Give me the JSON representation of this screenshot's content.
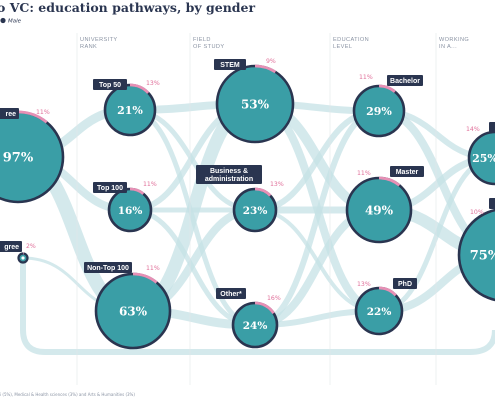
{
  "title": "o VC: education pathways, by gender",
  "legend": {
    "male": "Male"
  },
  "colors": {
    "male": "#3a9ea6",
    "female": "#e690b5",
    "navy": "#2a3550",
    "flow": "#c6e2e6"
  },
  "column_headers": [
    [
      "UNIVERSITY",
      "RANK"
    ],
    [
      "FIELD",
      "OF STUDY"
    ],
    [
      "EDUCATION",
      "LEVEL"
    ],
    [
      "WORKING",
      "IN A..."
    ]
  ],
  "footnote": "i (5%), Medical & Health sciences (3%) and Arts & Humanities (3%)",
  "chart_data": {
    "type": "bubble-flow",
    "title": "o VC: education pathways, by gender",
    "nodes": [
      {
        "stage": "degree",
        "label": "ree",
        "male_pct": "97%",
        "female_pct": "11%"
      },
      {
        "stage": "degree",
        "label": "gree",
        "male_pct": "3%",
        "female_pct": "2%"
      },
      {
        "stage": "university_rank",
        "label": "Top 50",
        "male_pct": "21%",
        "female_pct": "13%"
      },
      {
        "stage": "university_rank",
        "label": "Top 100",
        "male_pct": "16%",
        "female_pct": "11%"
      },
      {
        "stage": "university_rank",
        "label": "Non-Top 100",
        "male_pct": "63%",
        "female_pct": "11%"
      },
      {
        "stage": "field_of_study",
        "label": "STEM",
        "male_pct": "53%",
        "female_pct": "9%"
      },
      {
        "stage": "field_of_study",
        "label": "Business & administration",
        "male_pct": "23%",
        "female_pct": "13%"
      },
      {
        "stage": "field_of_study",
        "label": "Other*",
        "male_pct": "24%",
        "female_pct": "16%"
      },
      {
        "stage": "education_level",
        "label": "Bachelor",
        "male_pct": "29%",
        "female_pct": "11%"
      },
      {
        "stage": "education_level",
        "label": "Master",
        "male_pct": "49%",
        "female_pct": "11%"
      },
      {
        "stage": "education_level",
        "label": "PhD",
        "male_pct": "22%",
        "female_pct": "13%"
      },
      {
        "stage": "working_in",
        "label": "",
        "male_pct": "25%",
        "female_pct": "14%"
      },
      {
        "stage": "working_in",
        "label": "",
        "male_pct": "75%",
        "female_pct": "10%"
      }
    ]
  }
}
